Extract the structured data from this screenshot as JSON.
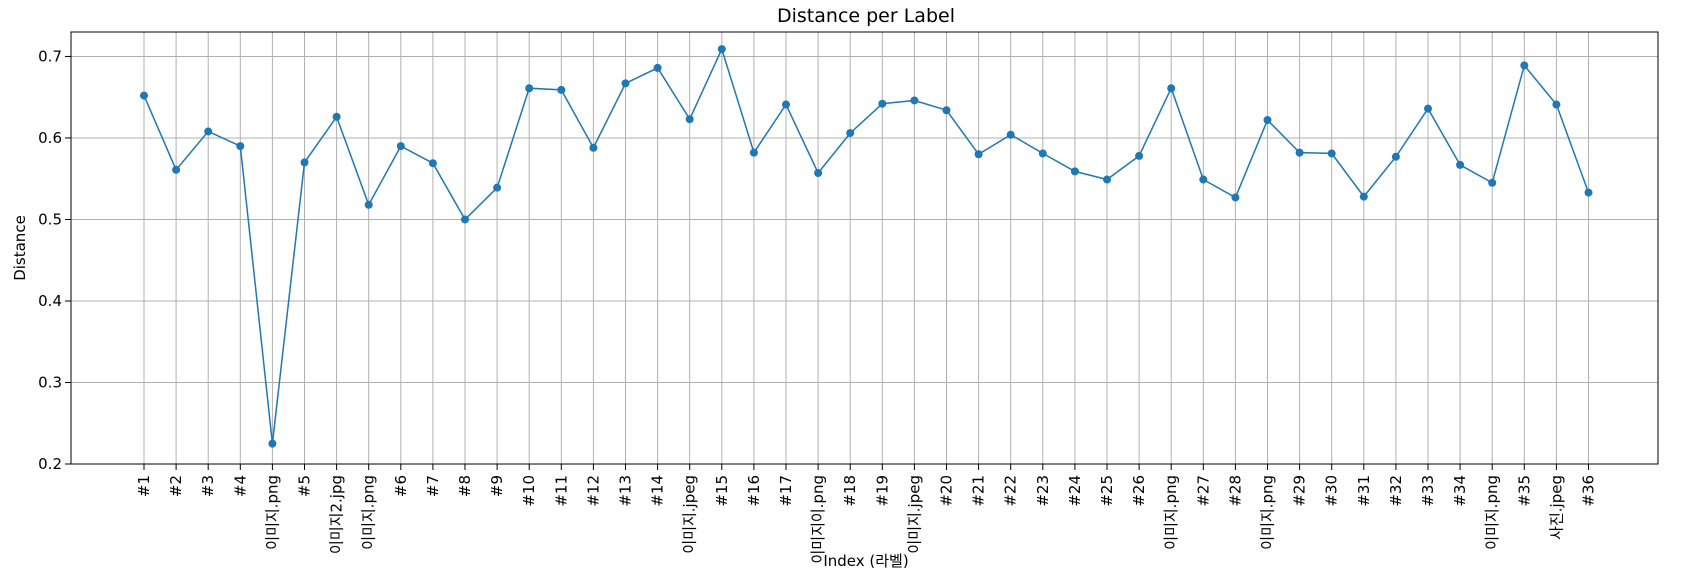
{
  "chart_data": {
    "type": "line",
    "title": "Distance per Label",
    "xlabel": "Index (라벨)",
    "ylabel": "Distance",
    "ylim": [
      0.2,
      0.73
    ],
    "yticks": [
      0.2,
      0.3,
      0.4,
      0.5,
      0.6,
      0.7
    ],
    "ytick_labels": [
      "0.2",
      "0.3",
      "0.4",
      "0.5",
      "0.6",
      "0.7"
    ],
    "grid": true,
    "marker": "circle",
    "colors": {
      "line": "#1f77b4",
      "grid": "#b0b0b0",
      "axis": "#000000"
    },
    "categories": [
      "#1",
      "#2",
      "#3",
      "#4",
      "이미지.png",
      "#5",
      "이미지2.jpg",
      "이미지.png",
      "#6",
      "#7",
      "#8",
      "#9",
      "#10",
      "#11",
      "#12",
      "#13",
      "#14",
      "이미지.jpeg",
      "#15",
      "#16",
      "#17",
      "이미지이.png",
      "#18",
      "#19",
      "이미지.jpeg",
      "#20",
      "#21",
      "#22",
      "#23",
      "#24",
      "#25",
      "#26",
      "이미지.png",
      "#27",
      "#28",
      "이미지.png",
      "#29",
      "#30",
      "#31",
      "#32",
      "#33",
      "#34",
      "이미지.png",
      "#35",
      "사진.jpeg",
      "#36"
    ],
    "values": [
      0.652,
      0.561,
      0.608,
      0.59,
      0.225,
      0.57,
      0.626,
      0.518,
      0.59,
      0.569,
      0.5,
      0.539,
      0.661,
      0.659,
      0.588,
      0.667,
      0.686,
      0.623,
      0.709,
      0.582,
      0.641,
      0.557,
      0.606,
      0.642,
      0.646,
      0.634,
      0.58,
      0.604,
      0.581,
      0.559,
      0.549,
      0.578,
      0.661,
      0.549,
      0.527,
      0.622,
      0.582,
      0.581,
      0.528,
      0.577,
      0.636,
      0.567,
      0.545,
      0.689,
      0.641,
      0.533
    ]
  }
}
